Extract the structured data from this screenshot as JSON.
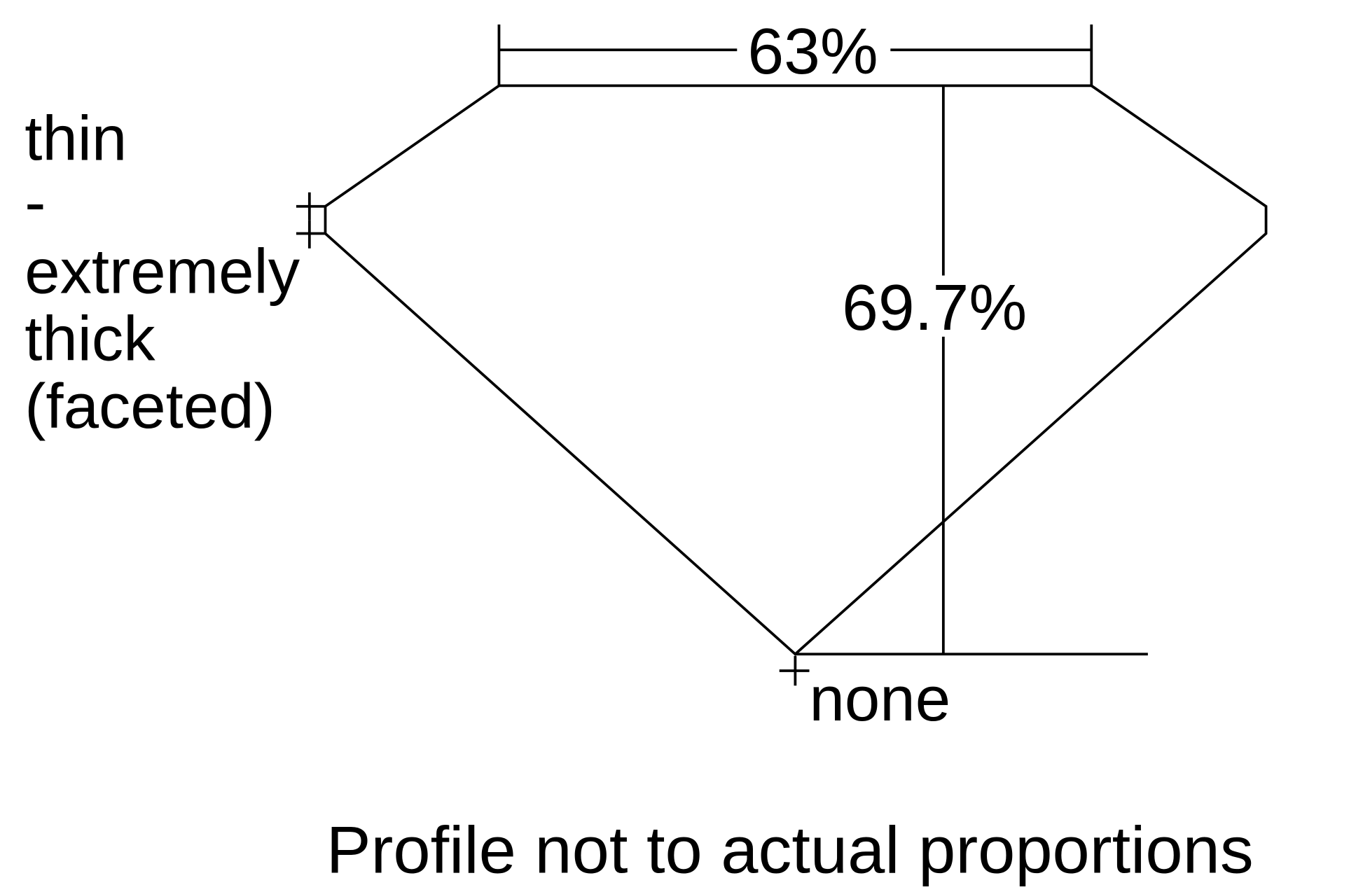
{
  "table_percent": "63%",
  "depth_percent": "69.7%",
  "girdle": {
    "lines": [
      "thin",
      "-",
      "extremely",
      "thick",
      "(faceted)"
    ]
  },
  "culet": "none",
  "note": "Profile not to actual proportions",
  "line_color": "#000000"
}
